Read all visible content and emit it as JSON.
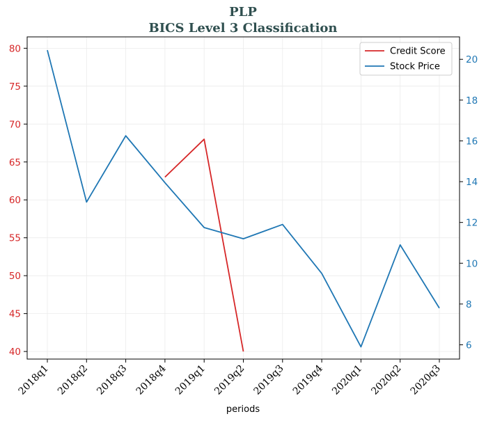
{
  "chart_data": {
    "type": "line",
    "title": "PLP",
    "subtitle": "BICS Level 3 Classification",
    "xlabel": "periods",
    "categories": [
      "2018q1",
      "2018q2",
      "2018q3",
      "2018q4",
      "2019q1",
      "2019q2",
      "2019q3",
      "2019q4",
      "2020q1",
      "2020q2",
      "2020q3"
    ],
    "series": [
      {
        "name": "Credit Score",
        "axis": "left",
        "color": "#d62728",
        "values": [
          null,
          null,
          null,
          63,
          68,
          40,
          null,
          null,
          null,
          null,
          null
        ]
      },
      {
        "name": "Stock Price",
        "axis": "right",
        "color": "#1f77b4",
        "values": [
          20.45,
          13.0,
          16.25,
          13.95,
          11.75,
          11.2,
          11.9,
          9.5,
          5.9,
          10.9,
          7.8
        ]
      }
    ],
    "y_left": {
      "lim": [
        39,
        81.5
      ],
      "ticks": [
        40,
        45,
        50,
        55,
        60,
        65,
        70,
        75,
        80
      ],
      "color": "#d62728"
    },
    "y_right": {
      "lim": [
        5.3,
        21.1
      ],
      "ticks": [
        6,
        8,
        10,
        12,
        14,
        16,
        18,
        20
      ],
      "color": "#1f77b4"
    },
    "grid": true,
    "legend_position": "top-right"
  }
}
